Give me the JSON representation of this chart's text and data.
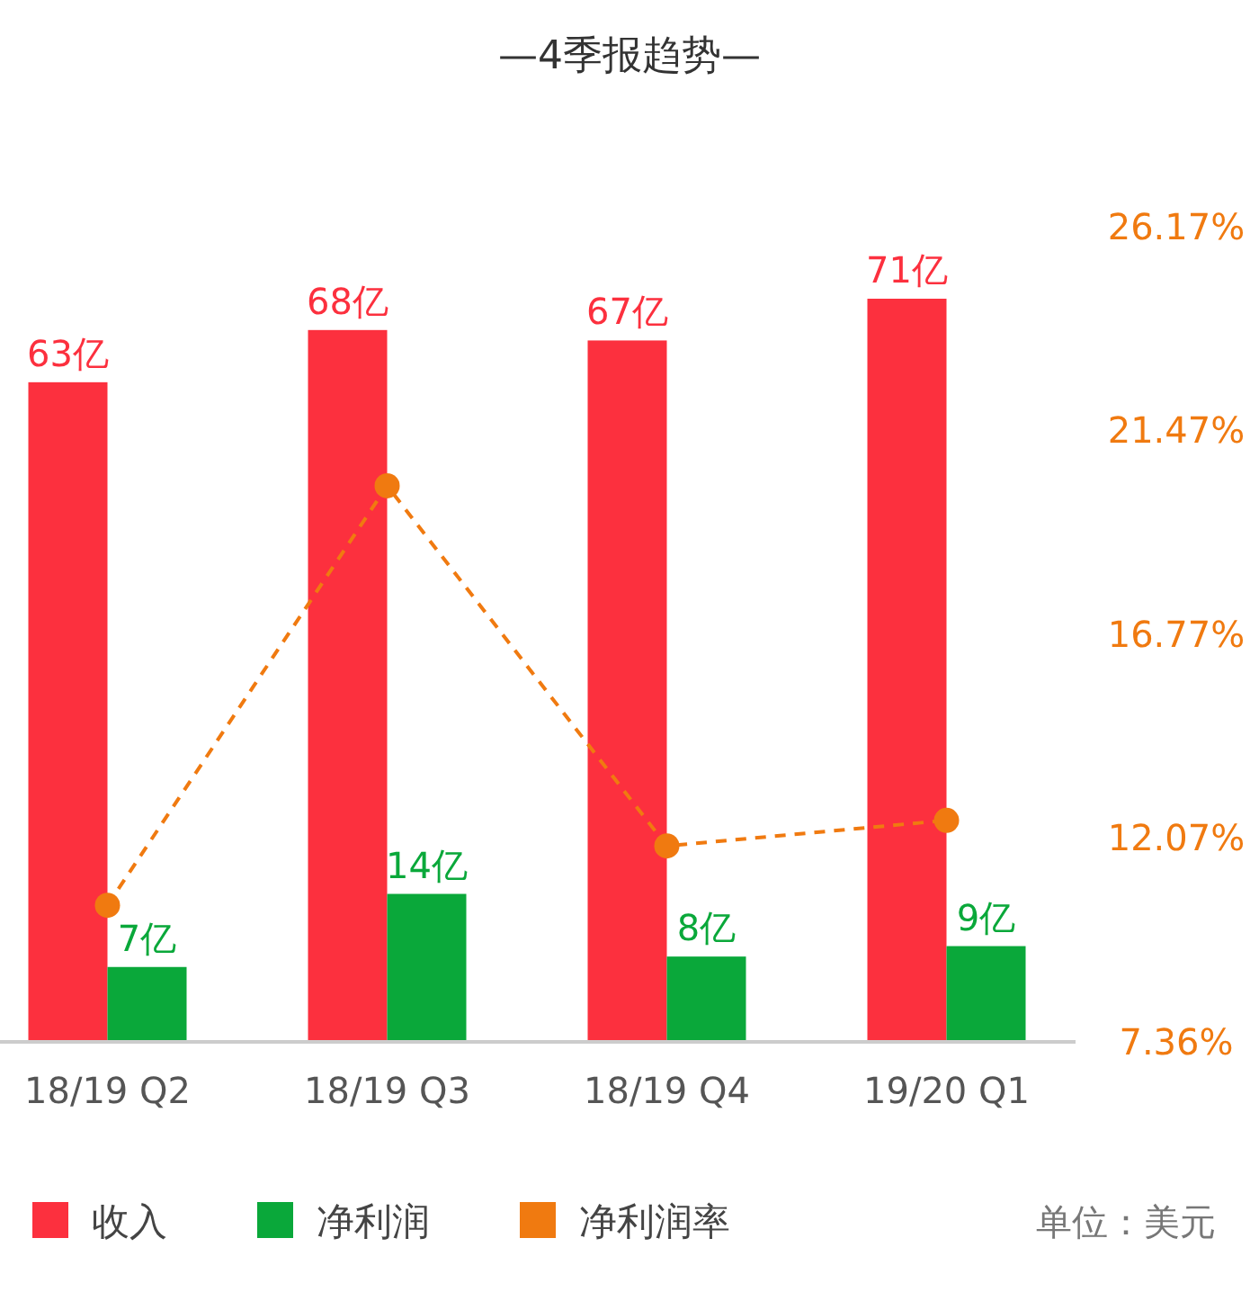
{
  "chart_data": {
    "type": "bar",
    "title": "—4季报趋势—",
    "categories": [
      "18/19 Q2",
      "18/19 Q3",
      "18/19 Q4",
      "19/20 Q1"
    ],
    "series": [
      {
        "name": "收入",
        "color": "#fc303e",
        "values": [
          63,
          68,
          67,
          71
        ],
        "value_labels": [
          "63亿",
          "68亿",
          "67亿",
          "71亿"
        ]
      },
      {
        "name": "净利润",
        "color": "#0aa83a",
        "values": [
          7,
          14,
          8,
          9
        ],
        "value_labels": [
          "7亿",
          "14亿",
          "8亿",
          "9亿"
        ]
      },
      {
        "name": "净利润率",
        "type": "line",
        "axis": "y2",
        "color": "#f07a10",
        "marker": "circle",
        "line_style": "dashed",
        "values": [
          10.47,
          20.15,
          11.84,
          12.43
        ]
      }
    ],
    "y2lim": [
      7.36,
      26.17
    ],
    "y2ticks": [
      {
        "value": 7.36,
        "label": "7.36%"
      },
      {
        "value": 12.07,
        "label": "12.07%"
      },
      {
        "value": 16.77,
        "label": "16.77%"
      },
      {
        "value": 21.47,
        "label": "21.47%"
      },
      {
        "value": 26.17,
        "label": "26.17%"
      }
    ],
    "legend": "bottom",
    "annotations": [
      "单位：美元"
    ]
  }
}
